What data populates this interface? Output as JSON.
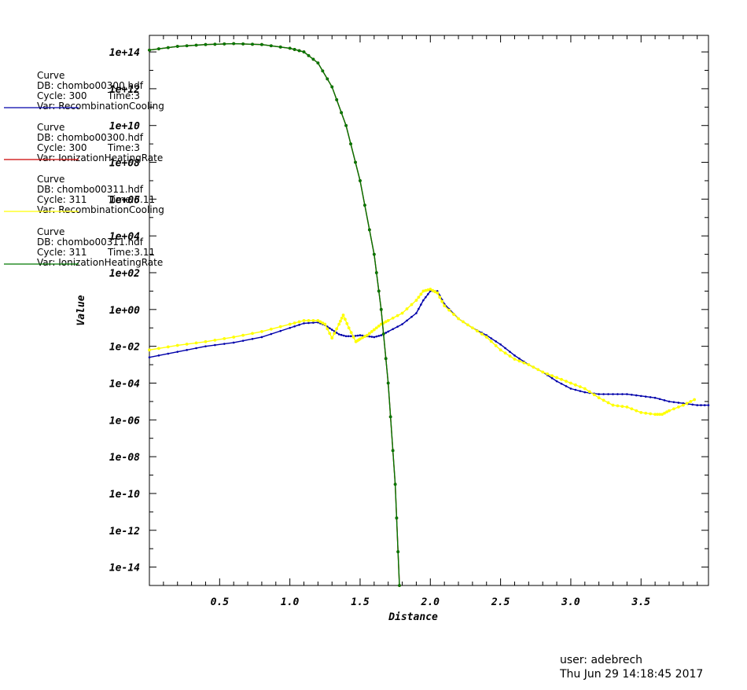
{
  "chart_data": {
    "type": "line",
    "xlabel": "Distance",
    "ylabel": "Value",
    "xlim": [
      0,
      3.98
    ],
    "ylim_exp": [
      -15,
      14.9
    ],
    "y_scale": "log",
    "x_ticks": [
      "0.5",
      "1.0",
      "1.5",
      "2.0",
      "2.5",
      "3.0",
      "3.5"
    ],
    "y_ticks": [
      "1e-14",
      "1e-12",
      "1e-10",
      "1e-08",
      "1e-06",
      "1e-04",
      "1e-02",
      "1e+00",
      "1e+02",
      "1e+04",
      "1e+06",
      "1e+08",
      "1e+10",
      "1e+12",
      "1e+14"
    ],
    "grid": false,
    "legend_placement": "left",
    "series": [
      {
        "legend": [
          "Curve",
          "DB: chombo00300.hdf",
          "Cycle: 300",
          "Time:3",
          "Var: RecombinationCooling"
        ],
        "color": "#0000aa",
        "x": [
          0.0,
          0.2,
          0.4,
          0.6,
          0.8,
          1.0,
          1.1,
          1.2,
          1.25,
          1.3,
          1.35,
          1.4,
          1.45,
          1.5,
          1.55,
          1.6,
          1.65,
          1.7,
          1.8,
          1.9,
          1.95,
          2.0,
          2.05,
          2.1,
          2.2,
          2.3,
          2.4,
          2.5,
          2.6,
          2.7,
          2.8,
          2.9,
          3.0,
          3.1,
          3.2,
          3.3,
          3.4,
          3.5,
          3.6,
          3.7,
          3.8,
          3.9,
          3.98
        ],
        "log10_y": [
          -2.6,
          -2.3,
          -2.0,
          -1.8,
          -1.5,
          -1.0,
          -0.75,
          -0.7,
          -0.85,
          -1.1,
          -1.35,
          -1.45,
          -1.45,
          -1.4,
          -1.45,
          -1.5,
          -1.4,
          -1.2,
          -0.8,
          -0.2,
          0.5,
          1.0,
          1.0,
          0.3,
          -0.5,
          -1.0,
          -1.4,
          -1.9,
          -2.5,
          -3.0,
          -3.4,
          -3.9,
          -4.3,
          -4.5,
          -4.6,
          -4.6,
          -4.6,
          -4.7,
          -4.8,
          -5.0,
          -5.1,
          -5.2,
          -5.2
        ]
      },
      {
        "legend": [
          "Curve",
          "DB: chombo00300.hdf",
          "Cycle: 300",
          "Time:3",
          "Var: IonizationHeatingRate"
        ],
        "color": "#cc0000",
        "x": [
          0.0,
          0.2,
          0.4,
          0.6,
          0.8,
          1.0,
          1.1,
          1.2,
          1.3,
          1.4,
          1.5,
          1.6,
          1.65,
          1.7,
          1.75,
          1.78
        ],
        "log10_y": [
          14.1,
          14.3,
          14.4,
          14.45,
          14.4,
          14.2,
          14.0,
          13.4,
          12.1,
          10.0,
          7.0,
          3.0,
          0.0,
          -4.0,
          -9.5,
          -15.0
        ]
      },
      {
        "legend": [
          "Curve",
          "DB: chombo00311.hdf",
          "Cycle: 311",
          "Time:3.11",
          "Var: RecombinationCooling"
        ],
        "color": "#ffff00",
        "x": [
          0.0,
          0.2,
          0.4,
          0.6,
          0.8,
          1.0,
          1.1,
          1.2,
          1.25,
          1.3,
          1.35,
          1.38,
          1.42,
          1.47,
          1.5,
          1.55,
          1.6,
          1.65,
          1.7,
          1.8,
          1.9,
          1.95,
          2.0,
          2.05,
          2.1,
          2.2,
          2.3,
          2.4,
          2.5,
          2.6,
          2.7,
          2.8,
          2.9,
          3.0,
          3.1,
          3.2,
          3.3,
          3.4,
          3.5,
          3.6,
          3.65,
          3.7,
          3.8,
          3.88
        ],
        "log10_y": [
          -2.2,
          -1.95,
          -1.75,
          -1.5,
          -1.2,
          -0.8,
          -0.6,
          -0.6,
          -0.8,
          -1.55,
          -0.8,
          -0.3,
          -1.0,
          -1.75,
          -1.6,
          -1.4,
          -1.1,
          -0.8,
          -0.6,
          -0.2,
          0.5,
          1.0,
          1.1,
          0.9,
          0.2,
          -0.5,
          -1.0,
          -1.5,
          -2.2,
          -2.7,
          -3.0,
          -3.4,
          -3.7,
          -4.0,
          -4.3,
          -4.8,
          -5.2,
          -5.3,
          -5.6,
          -5.7,
          -5.7,
          -5.5,
          -5.2,
          -4.9
        ]
      },
      {
        "legend": [
          "Curve",
          "DB: chombo00311.hdf",
          "Cycle: 311",
          "Time:3.11",
          "Var: IonizationHeatingRate"
        ],
        "color": "#007700",
        "x": [
          0.0,
          0.2,
          0.4,
          0.6,
          0.8,
          1.0,
          1.1,
          1.2,
          1.3,
          1.4,
          1.5,
          1.6,
          1.65,
          1.7,
          1.75,
          1.78
        ],
        "log10_y": [
          14.1,
          14.3,
          14.4,
          14.45,
          14.4,
          14.2,
          14.0,
          13.4,
          12.1,
          10.0,
          7.0,
          3.0,
          0.0,
          -4.0,
          -9.5,
          -15.0
        ]
      }
    ]
  },
  "footer": {
    "user": "user: adebrech",
    "date": "Thu Jun 29 14:18:45 2017"
  }
}
